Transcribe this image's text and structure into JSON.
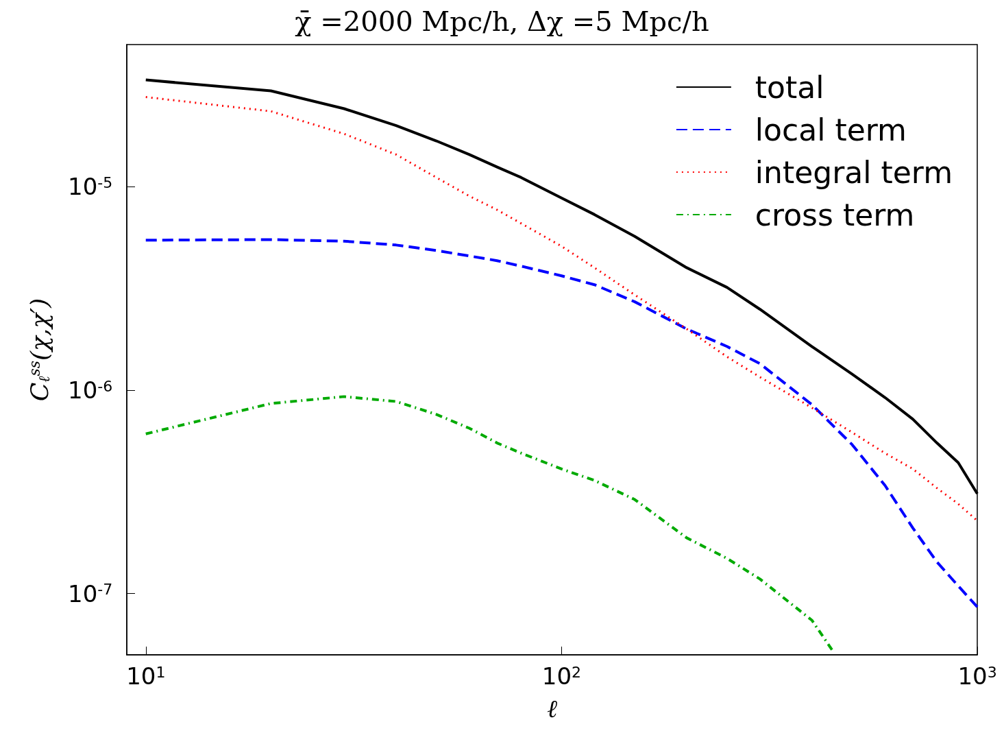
{
  "chart_data": {
    "type": "line",
    "title": "χ̄ =2000 Mpc/h, Δχ =5 Mpc/h",
    "xlabel": "ℓ",
    "ylabel": "C$_{ℓ}$$^{ss}$(χ,χ′)",
    "log": "xy",
    "xlim": [
      9,
      1000
    ],
    "xticks": [
      {
        "value": 10,
        "label": "10$^{1}$"
      },
      {
        "value": 100,
        "label": "10$^{2}$"
      },
      {
        "value": 1000,
        "label": "10$^{3}$"
      }
    ],
    "ylim": [
      5e-08,
      5e-05
    ],
    "yticks": [
      {
        "value": 1e-07,
        "label": "10$^{-7}$"
      },
      {
        "value": 1e-06,
        "label": "10$^{-6}$"
      },
      {
        "value": 1e-05,
        "label": "10$^{-5}$"
      }
    ],
    "grid": false,
    "legend": "top right",
    "marker": "none",
    "x": [
      10,
      20,
      30,
      40,
      50,
      60,
      70,
      80,
      100,
      120,
      150,
      200,
      250,
      300,
      400,
      500,
      600,
      700,
      800,
      900,
      1000
    ],
    "series": [
      {
        "name": "total",
        "color": "#000000",
        "line_style": "solid",
        "values": [
          3.35e-05,
          2.96e-05,
          2.42e-05,
          2e-05,
          1.68e-05,
          1.44e-05,
          1.25e-05,
          1.11e-05,
          8.8e-06,
          7.3e-06,
          5.7e-06,
          4e-06,
          3.2e-06,
          2.5e-06,
          1.64e-06,
          1.2e-06,
          9.2e-07,
          7.2e-07,
          5.5e-07,
          4.4e-07,
          3.1e-07
        ]
      },
      {
        "name": "local term",
        "color": "#0000ff",
        "line_style": "dashed",
        "values": [
          5.46e-06,
          5.5e-06,
          5.4e-06,
          5.17e-06,
          4.86e-06,
          4.57e-06,
          4.33e-06,
          4.07e-06,
          3.65e-06,
          3.3e-06,
          2.72e-06,
          2e-06,
          1.64e-06,
          1.35e-06,
          8.5e-07,
          5.4e-07,
          3.4e-07,
          2.1e-07,
          1.43e-07,
          1.09e-07,
          8.6e-08
        ]
      },
      {
        "name": "integral term",
        "color": "#ff0000",
        "line_style": "dotted",
        "values": [
          2.76e-05,
          2.35e-05,
          1.82e-05,
          1.44e-05,
          1.11e-05,
          9e-06,
          7.7e-06,
          6.6e-06,
          5.1e-06,
          4e-06,
          2.94e-06,
          2e-06,
          1.46e-06,
          1.16e-06,
          8.2e-07,
          6.2e-07,
          4.9e-07,
          4.1e-07,
          3.3e-07,
          2.76e-07,
          2.28e-07
        ]
      },
      {
        "name": "cross term",
        "color": "#00aa00",
        "line_style": "dashdot",
        "x": [
          10,
          20,
          30,
          40,
          50,
          60,
          70,
          80,
          100,
          120,
          150,
          200,
          250,
          300,
          400,
          450
        ],
        "values": [
          6.1e-07,
          8.6e-07,
          9.3e-07,
          8.8e-07,
          7.6e-07,
          6.5e-07,
          5.5e-07,
          4.9e-07,
          4.1e-07,
          3.6e-07,
          2.9e-07,
          1.88e-07,
          1.49e-07,
          1.18e-07,
          7.4e-08,
          5.2e-08
        ]
      }
    ]
  }
}
